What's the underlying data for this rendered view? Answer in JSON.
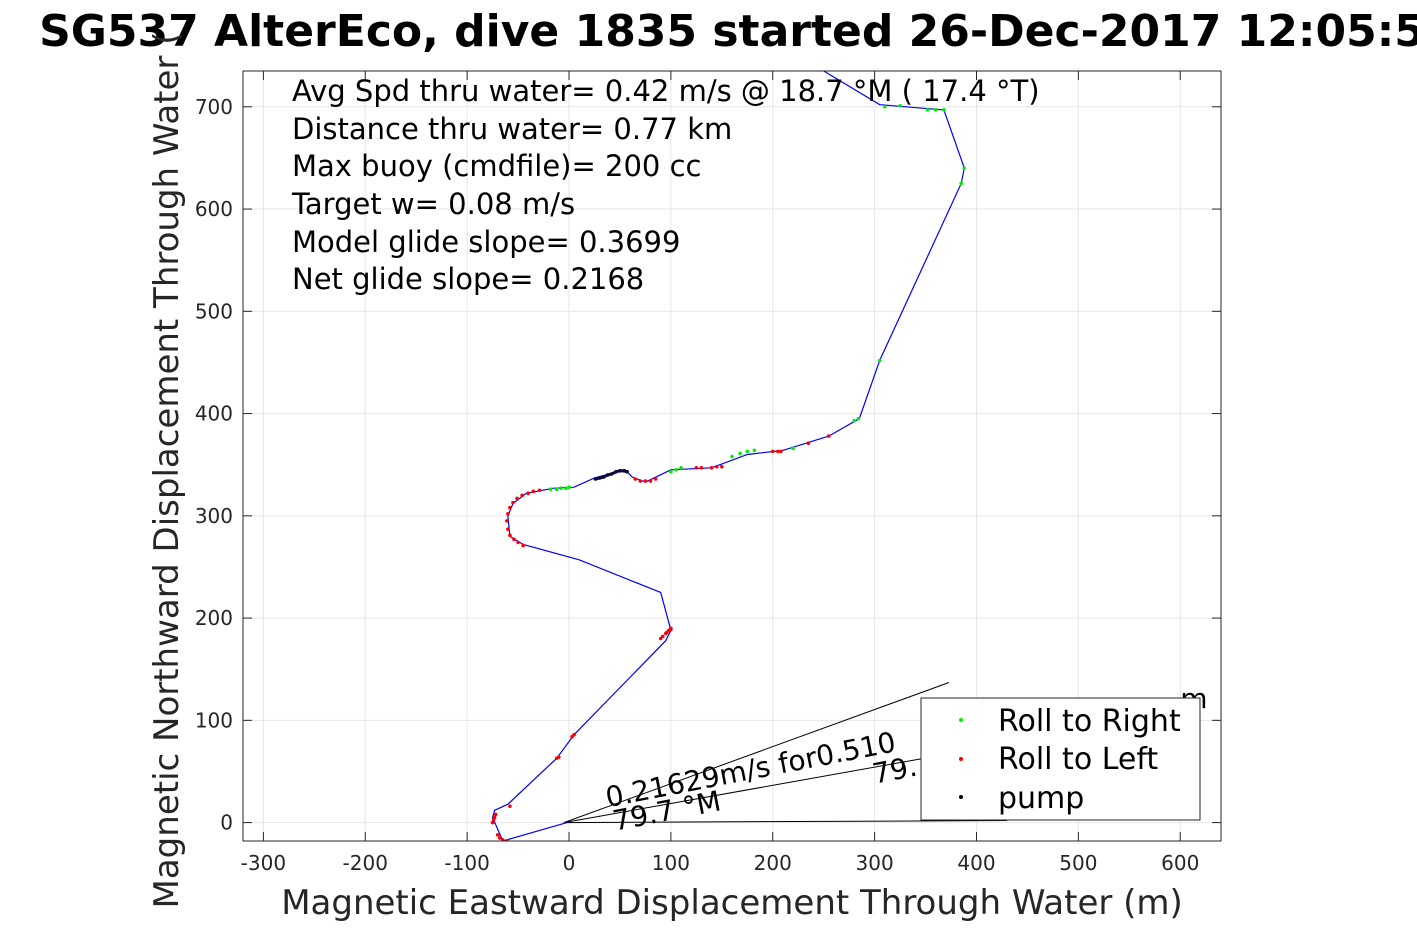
{
  "chart_data": {
    "type": "line",
    "title": "SG537 AlterEco, dive 1835 started 26-Dec-2017 12:05:5",
    "xlabel": "Magnetic Eastward Displacement Through Water (m)",
    "ylabel": "Magnetic Northward Displacement Through Water (",
    "xlim": [
      -320,
      640
    ],
    "ylim": [
      -18,
      735
    ],
    "xticks": [
      -300,
      -200,
      -100,
      0,
      100,
      200,
      300,
      400,
      500,
      600
    ],
    "yticks": [
      0,
      100,
      200,
      300,
      400,
      500,
      600,
      700
    ],
    "grid": true,
    "legend_position": "bottom-right",
    "annotations": [
      "Avg Spd thru water=  0.42 m/s @  18.7 °M ( 17.4 °T)",
      "Distance thru water=  0.77 km",
      "Max buoy (cmdfile)= 200 cc",
      "Target w= 0.08 m/s",
      "Model glide slope= 0.3699",
      "Net glide slope= 0.2168"
    ],
    "legend": [
      {
        "label": "Roll to Right",
        "color": "#00ee00"
      },
      {
        "label": "Roll to Left",
        "color": "#ff0000"
      },
      {
        "label": "pump",
        "color": "#000000"
      }
    ],
    "slope_labels": [
      {
        "text": "0.21629m/s for0.510",
        "x": 38,
        "y": 15,
        "angle_deg": -11
      },
      {
        "text": "79.7 °M",
        "x": 45,
        "y": -8,
        "angle_deg": -11
      },
      {
        "text": "79.",
        "x": 300,
        "y": 38,
        "angle_deg": -11
      },
      {
        "text": "m",
        "x": 600,
        "y": 112,
        "angle_deg": 0
      }
    ],
    "track": {
      "name": "Dive track",
      "color": "#0000ff",
      "x": [
        -2,
        -65,
        -75,
        -73,
        -60,
        -12,
        5,
        95,
        100,
        90,
        10,
        -45,
        -58,
        -60,
        -55,
        -42,
        -15,
        5,
        25,
        55,
        62,
        75,
        100,
        140,
        175,
        210,
        255,
        285,
        305,
        385,
        388,
        368,
        305,
        250
      ],
      "y": [
        0,
        -18,
        5,
        12,
        18,
        63,
        86,
        178,
        188,
        225,
        257,
        272,
        280,
        300,
        312,
        322,
        327,
        328,
        337,
        345,
        338,
        333,
        345,
        347,
        360,
        364,
        378,
        395,
        452,
        625,
        640,
        697,
        702,
        735
      ]
    },
    "rollRight": {
      "x": [
        -18,
        -12,
        -8,
        -3,
        0,
        100,
        105,
        110,
        160,
        168,
        175,
        182,
        220,
        280,
        284,
        305,
        310,
        325,
        352,
        360,
        368,
        385,
        388
      ],
      "y": [
        326,
        326,
        327,
        327,
        328,
        343,
        345,
        347,
        358,
        361,
        363,
        364,
        366,
        393,
        395,
        452,
        700,
        701,
        697,
        697,
        697,
        625,
        640
      ]
    },
    "rollLeft": {
      "x": [
        -75,
        -74,
        -73,
        -72,
        -70,
        -68,
        -65,
        -61,
        -58,
        -12,
        -10,
        3,
        5,
        90,
        92,
        95,
        96,
        98,
        100,
        100,
        -45,
        -50,
        -54,
        -58,
        -60,
        -61,
        -60,
        -58,
        -55,
        -51,
        -46,
        -40,
        -35,
        -29,
        65,
        70,
        75,
        80,
        85,
        125,
        130,
        140,
        145,
        150,
        200,
        205,
        208,
        235,
        255
      ],
      "y": [
        0,
        3,
        5,
        8,
        -12,
        -15,
        -17,
        -18,
        16,
        63,
        64,
        84,
        86,
        180,
        182,
        185,
        186,
        188,
        189,
        190,
        271,
        274,
        277,
        281,
        287,
        295,
        302,
        308,
        313,
        317,
        320,
        322,
        324,
        325,
        336,
        334,
        334,
        334,
        336,
        347,
        347,
        347,
        348,
        348,
        363,
        363,
        363,
        371,
        378
      ]
    },
    "pump": {
      "x": [
        26,
        30,
        34,
        38,
        42,
        46,
        50,
        54,
        57
      ],
      "y": [
        336,
        337,
        338,
        340,
        341,
        343,
        344,
        344,
        343
      ]
    },
    "glide_lines": [
      {
        "x": [
          -5,
          373
        ],
        "y": [
          0,
          137
        ]
      },
      {
        "x": [
          -5,
          355
        ],
        "y": [
          0,
          64
        ]
      },
      {
        "x": [
          -5,
          430
        ],
        "y": [
          0,
          2
        ]
      }
    ]
  }
}
